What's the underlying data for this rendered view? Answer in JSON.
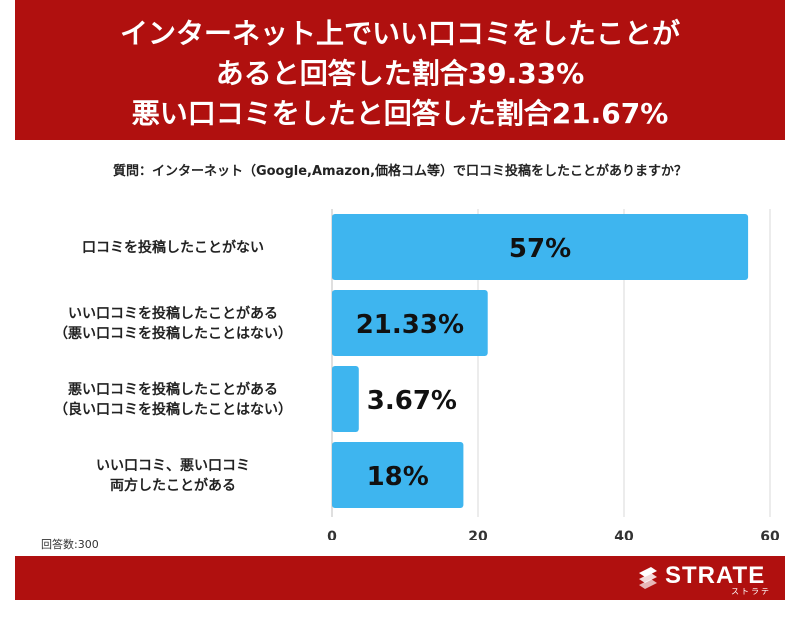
{
  "header": {
    "line1": "インターネット上でいい口コミをしたことが",
    "line2": "あると回答した割合39.33%",
    "line3": "悪い口コミをしたと回答した割合21.67%"
  },
  "question": "質問：インターネット（Google,Amazon,価格コム等）で口コミ投稿をしたことがありますか？",
  "footnote": "回答数:300",
  "logo": {
    "name": "STRATE",
    "sub": "ストラテ"
  },
  "colors": {
    "header": "#b0100f",
    "bar": "#3eb5ef"
  },
  "chart_data": {
    "type": "bar",
    "orientation": "horizontal",
    "categories": [
      [
        "口コミを投稿したことがない"
      ],
      [
        "いい口コミを投稿したことがある",
        "（悪い口コミを投稿したことはない）"
      ],
      [
        "悪い口コミを投稿したことがある",
        "（良い口コミを投稿したことはない）"
      ],
      [
        "いい口コミ、悪い口コミ",
        "両方したことがある"
      ]
    ],
    "values": [
      57,
      21.33,
      3.67,
      18
    ],
    "data_labels": [
      "57%",
      "21.33%",
      "3.67%",
      "18%"
    ],
    "xlim": [
      0,
      60
    ],
    "xticks": [
      0,
      20,
      40,
      60
    ],
    "grid": true
  }
}
